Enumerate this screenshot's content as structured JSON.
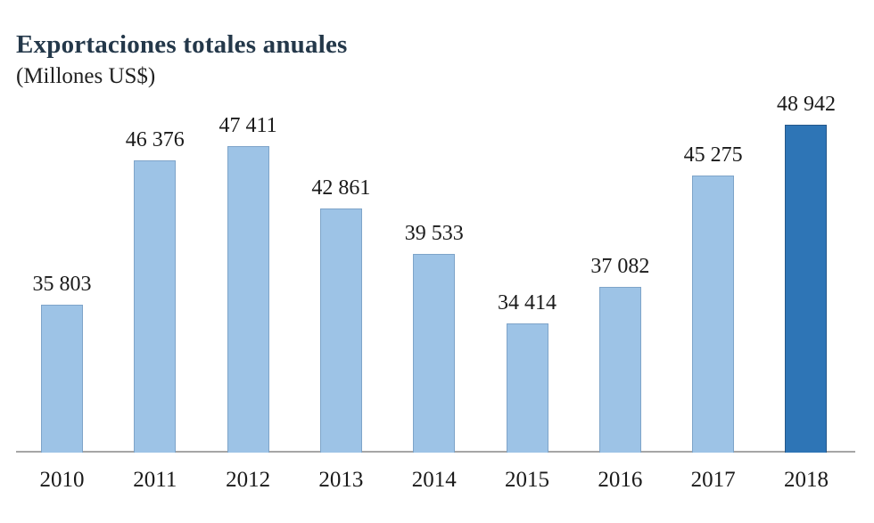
{
  "chart_data": {
    "type": "bar",
    "title": "Exportaciones totales anuales",
    "subtitle": "(Millones US$)",
    "categories": [
      "2010",
      "2011",
      "2012",
      "2013",
      "2014",
      "2015",
      "2016",
      "2017",
      "2018"
    ],
    "values": [
      35803,
      46376,
      47411,
      42861,
      39533,
      34414,
      37082,
      45275,
      48942
    ],
    "value_labels": [
      "35 803",
      "46 376",
      "47 411",
      "42 861",
      "39 533",
      "34 414",
      "37 082",
      "45 275",
      "48 942"
    ],
    "highlight_index": 8,
    "xlabel": "",
    "ylabel": "",
    "ylim": [
      25000,
      50000
    ],
    "grid": false,
    "legend": null,
    "colors": {
      "bar_fill": "#9dc3e6",
      "bar_border": "#7ea4c9",
      "highlight_fill": "#2e75b6",
      "highlight_border": "#24578a",
      "axis_line": "#a6a6a6",
      "title_text": "#24384a",
      "label_text": "#1a1a1a"
    }
  }
}
